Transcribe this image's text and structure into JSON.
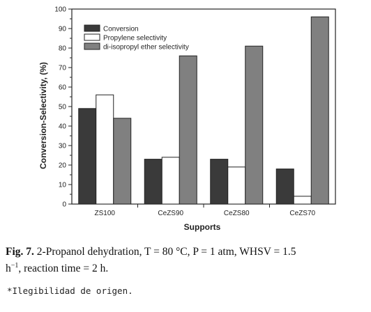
{
  "chart_data": {
    "type": "bar",
    "categories": [
      "ZS100",
      "CeZS90",
      "CeZS80",
      "CeZS70"
    ],
    "series": [
      {
        "name": "Conversion",
        "values": [
          49,
          23,
          23,
          18
        ],
        "color": "#3a3a3a"
      },
      {
        "name": "Propylene selectivity",
        "values": [
          56,
          24,
          19,
          4
        ],
        "color": "#ffffff"
      },
      {
        "name": "di-isopropyl ether selectivity",
        "values": [
          44,
          76,
          81,
          96
        ],
        "color": "#808080"
      }
    ],
    "ylim": [
      0,
      100
    ],
    "yticks": [
      0,
      10,
      20,
      30,
      40,
      50,
      60,
      70,
      80,
      90,
      100
    ],
    "xlabel": "Supports",
    "ylabel": "Conversion-Selectivity, (%)",
    "legend_position": "top-left",
    "grid": false
  },
  "caption": {
    "fig_label": "Fig. 7.",
    "line1_text": " 2-Propanol dehydration, T = 80 °C, P = 1 atm, WHSV = 1.5",
    "line2_h": "h",
    "line2_sup": "−1",
    "line2_text": ", reaction time = 2 h."
  },
  "note": "*Ilegibilidad de origen."
}
